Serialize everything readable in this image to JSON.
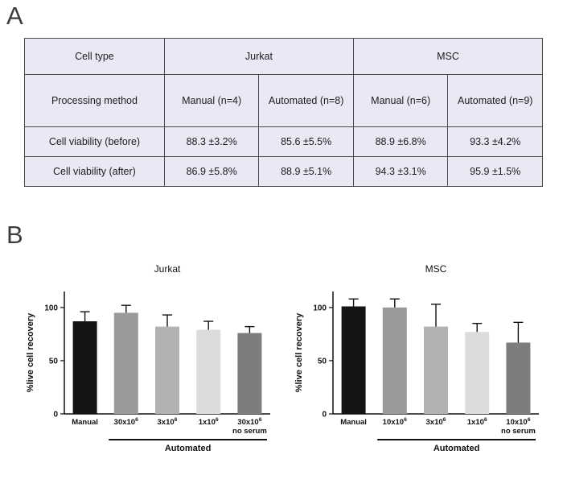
{
  "panels": {
    "a_label": "A",
    "b_label": "B"
  },
  "table": {
    "cell_type_header": "Cell type",
    "group_headers": [
      "Jurkat",
      "MSC"
    ],
    "processing_method_label": "Processing method",
    "method_headers": [
      "Manual (n=4)",
      "Automated (n=8)",
      "Manual (n=6)",
      "Automated (n=9)"
    ],
    "rows": [
      {
        "label": "Cell viability (before)",
        "values": [
          "88.3 ±3.2%",
          "85.6 ±5.5%",
          "88.9 ±6.8%",
          "93.3 ±4.2%"
        ]
      },
      {
        "label": "Cell viability (after)",
        "values": [
          "86.9 ±5.8%",
          "88.9 ±5.1%",
          "94.3 ±3.1%",
          "95.9 ±1.5%"
        ]
      }
    ],
    "background": "#e9e9f6",
    "border_color": "#4a4a4a"
  },
  "chart_data": [
    {
      "type": "bar",
      "title": "Jurkat",
      "ylabel": "%live cell recovery",
      "categories": [
        "Manual",
        "30x10^6",
        "3x10^6",
        "1x10^6",
        "30x10^6\nno serum"
      ],
      "values": [
        87,
        95,
        82,
        79,
        76
      ],
      "errors": [
        9,
        7,
        11,
        8,
        6
      ],
      "colors": [
        "#141414",
        "#9a9a9a",
        "#b2b2b2",
        "#dcdcdc",
        "#7d7d7d"
      ],
      "ylim": [
        0,
        115
      ],
      "yticks": [
        0,
        50,
        100
      ],
      "grid": false,
      "group_label": "Automated",
      "group_span": [
        1,
        4
      ]
    },
    {
      "type": "bar",
      "title": "MSC",
      "ylabel": "%live cell recovery",
      "categories": [
        "Manual",
        "10x10^6",
        "3x10^6",
        "1x10^6",
        "10x10^6\nno serum"
      ],
      "values": [
        101,
        100,
        82,
        77,
        67
      ],
      "errors": [
        7,
        8,
        21,
        8,
        19
      ],
      "colors": [
        "#141414",
        "#9a9a9a",
        "#b2b2b2",
        "#dcdcdc",
        "#7d7d7d"
      ],
      "ylim": [
        0,
        115
      ],
      "yticks": [
        0,
        50,
        100
      ],
      "grid": false,
      "group_label": "Automated",
      "group_span": [
        1,
        4
      ]
    }
  ]
}
